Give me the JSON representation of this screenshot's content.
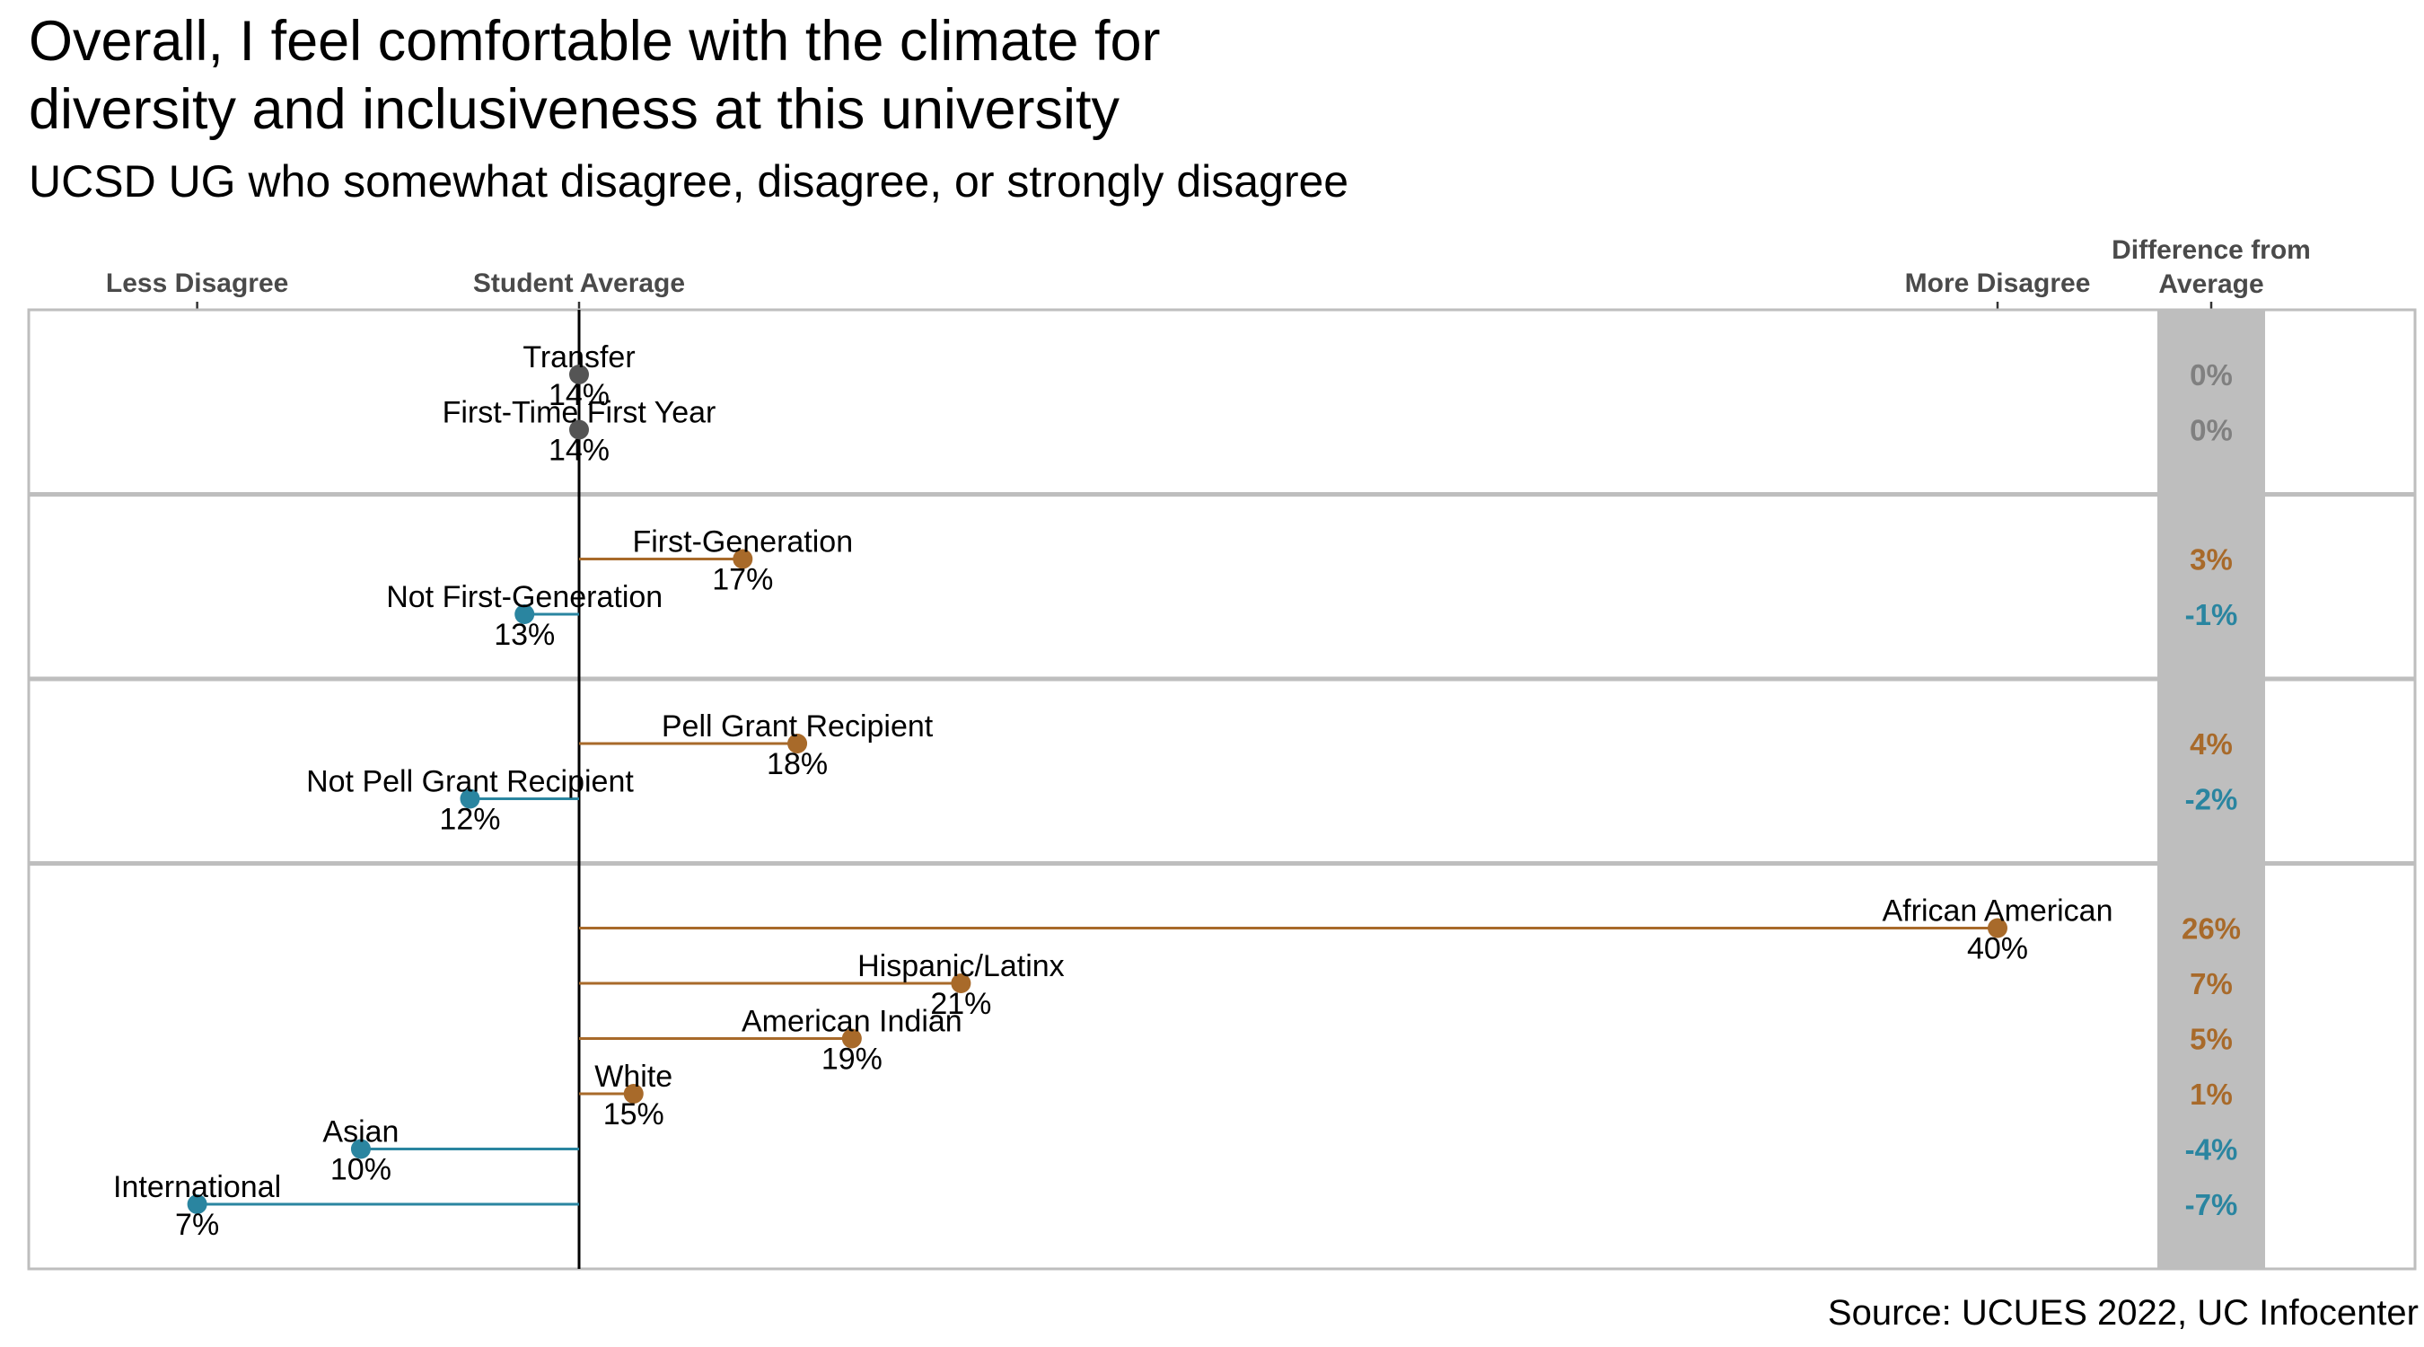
{
  "title": "Overall, I feel comfortable with the climate for diversity and inclusiveness at this university",
  "title_lines": [
    "Overall, I feel comfortable with the climate for",
    "diversity and inclusiveness at this university"
  ],
  "subtitle": "UCSD UG who somewhat disagree, disagree, or strongly disagree",
  "source": "Source: UCUES 2022, UC Infocenter",
  "axis": {
    "less_label": "Less Disagree",
    "average_label": "Student Average",
    "more_label": "More Disagree",
    "diff_header": [
      "Difference from",
      "Average"
    ]
  },
  "colors": {
    "above": "#A86A2A",
    "below": "#2A85A0",
    "equal": "#555555",
    "equal_text": "#808080",
    "diff_band": "#BEBEBE",
    "panel_border": "#BEBEBE"
  },
  "chart_data": {
    "type": "dot-lollipop",
    "title": "Overall, I feel comfortable with the climate for diversity and inclusiveness at this university",
    "subtitle": "UCSD UG who somewhat disagree, disagree, or strongly disagree",
    "unit": "%",
    "student_average": 14,
    "xlim": [
      4,
      50
    ],
    "axis_ticks": [
      {
        "label": "Less Disagree",
        "value": 7
      },
      {
        "label": "Student Average",
        "value": 14
      },
      {
        "label": "More Disagree",
        "value": 40
      }
    ],
    "panels": [
      {
        "groups": [
          {
            "name": "Transfer",
            "value": 14,
            "diff": "0%"
          },
          {
            "name": "First-Time First Year",
            "value": 14,
            "diff": "0%"
          }
        ]
      },
      {
        "groups": [
          {
            "name": "First-Generation",
            "value": 17,
            "diff": "3%"
          },
          {
            "name": "Not First-Generation",
            "value": 13,
            "diff": "-1%"
          }
        ]
      },
      {
        "groups": [
          {
            "name": "Pell Grant Recipient",
            "value": 18,
            "diff": "4%"
          },
          {
            "name": "Not Pell Grant Recipient",
            "value": 12,
            "diff": "-2%"
          }
        ]
      },
      {
        "groups": [
          {
            "name": "African American",
            "value": 40,
            "diff": "26%"
          },
          {
            "name": "Hispanic/Latinx",
            "value": 21,
            "diff": "7%"
          },
          {
            "name": "American Indian",
            "value": 19,
            "diff": "5%"
          },
          {
            "name": "White",
            "value": 15,
            "diff": "1%"
          },
          {
            "name": "Asian",
            "value": 10,
            "diff": "-4%"
          },
          {
            "name": "International",
            "value": 7,
            "diff": "-7%"
          }
        ]
      }
    ]
  }
}
